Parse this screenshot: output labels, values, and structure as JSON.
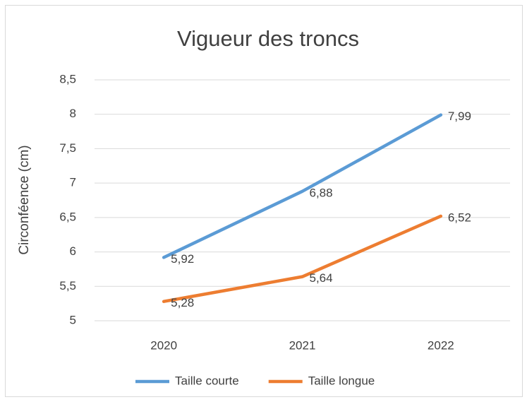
{
  "chart_data": {
    "type": "line",
    "title": "Vigueur des troncs",
    "y_label": "Circonféence (cm)",
    "categories": [
      "2020",
      "2021",
      "2022"
    ],
    "series": [
      {
        "name": "Taille courte",
        "color": "#5b9bd5",
        "values": [
          5.92,
          6.88,
          7.99
        ],
        "value_labels": [
          "5,92",
          "6,88",
          "7,99"
        ]
      },
      {
        "name": "Taille longue",
        "color": "#ed7d31",
        "values": [
          5.28,
          5.64,
          6.52
        ],
        "value_labels": [
          "5,28",
          "5,64",
          "6,52"
        ]
      }
    ],
    "ylim": [
      5,
      8.5
    ],
    "yticks": [
      5,
      {
        "value": 5.5,
        "label": "5,5"
      },
      6,
      {
        "value": 6.5,
        "label": "6,5"
      },
      7,
      {
        "value": 7.5,
        "label": "7,5"
      },
      8,
      {
        "value": 8.5,
        "label": "8,5"
      }
    ],
    "grid": true,
    "legend": "bottom"
  }
}
